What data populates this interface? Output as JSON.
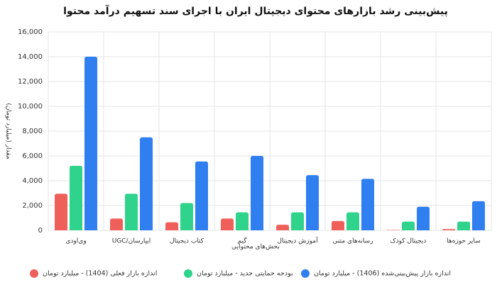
{
  "chart_data": {
    "type": "bar",
    "title": "پیش‌بینی رشد بازارهای محتوای دیجیتال ایران با اجرای سند تسهیم درآمد محتوا",
    "x_label": "بخش‌های محتوایی",
    "y_label": "مقدار (میلیارد تومان)",
    "categories": [
      "وی‌اودی",
      "UGC/ایپارسان",
      "کتاب دیجیتال",
      "گیم",
      "آموزش دیجیتال",
      "رسانه‌های متنی",
      "دیجیتال کودک",
      "سایر حوزه‌ها"
    ],
    "series": [
      {
        "name": "اندازه بازار فعلی (1404) - میلیارد تومان",
        "color": "#f0605a",
        "values": [
          2950,
          950,
          650,
          950,
          450,
          750,
          30,
          100
        ]
      },
      {
        "name": "بودجه حمایتی جدید - میلیارد تومان",
        "color": "#2fd38c",
        "values": [
          5200,
          2950,
          2200,
          1450,
          1450,
          1450,
          700,
          700
        ]
      },
      {
        "name": "اندازه بازار پیش‌بینی‌شده (1406) - میلیارد تومان",
        "color": "#2f7ff0",
        "values": [
          14000,
          7500,
          5550,
          6000,
          4450,
          4150,
          1900,
          2350
        ]
      }
    ],
    "ylim": [
      0,
      16000
    ],
    "yticks": [
      0,
      {
        "value": 2000,
        "label": "2,000"
      },
      {
        "value": 4000,
        "label": "4,000"
      },
      {
        "value": 6000,
        "label": "6,000"
      },
      {
        "value": 8000,
        "label": "8,000"
      },
      {
        "value": 10000,
        "label": "10,000"
      },
      {
        "value": 12000,
        "label": "12,000"
      },
      {
        "value": 14000,
        "label": "14,000"
      },
      {
        "value": 16000,
        "label": "16,000"
      }
    ],
    "grid": true
  }
}
